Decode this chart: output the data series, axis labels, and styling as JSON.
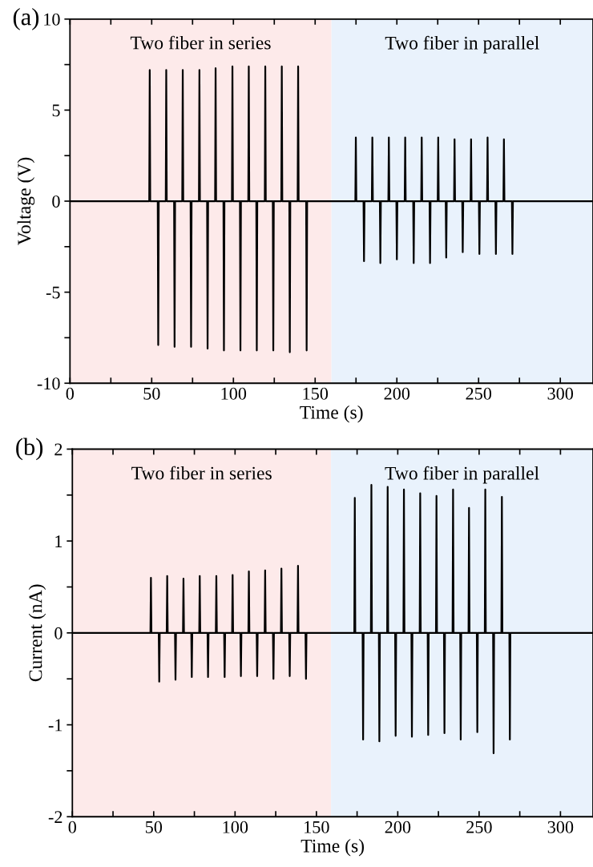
{
  "chart_data": [
    {
      "type": "line",
      "xlabel": "Time (s)",
      "ylabel": "Voltage (V)",
      "annotations": [
        "(a)"
      ],
      "xlim": [
        0,
        320
      ],
      "ylim": [
        -10,
        10
      ],
      "xticks": [
        0,
        {
          "value": 25,
          "label": null
        },
        50,
        {
          "value": 75,
          "label": null
        },
        100,
        {
          "value": 125,
          "label": null
        },
        150,
        {
          "value": 175,
          "label": null
        },
        200,
        {
          "value": 225,
          "label": null
        },
        250,
        {
          "value": 275,
          "label": null
        },
        300
      ],
      "yticks": [
        {
          "value": -10,
          "label": "-10"
        },
        {
          "value": -7.5,
          "label": null
        },
        {
          "value": -5,
          "label": "-5"
        },
        {
          "value": -2.5,
          "label": null
        },
        0,
        {
          "value": 2.5,
          "label": null
        },
        5,
        {
          "value": 7.5,
          "label": null
        },
        10
      ],
      "bands": [
        {
          "axis": "x",
          "from": 0,
          "to": 160,
          "label": "Two fiber in series",
          "color": "#fdeaea"
        },
        {
          "axis": "x",
          "from": 160,
          "to": 320,
          "label": "Two fiber in parallel",
          "color": "#e9f2fc"
        }
      ],
      "series": [
        {
          "color": "#000000",
          "x": [
            0,
            48.5,
            48.8,
            49.1,
            53.7,
            54.0,
            54.3,
            58.6,
            58.9,
            59.2,
            63.7,
            64.0,
            64.3,
            68.7,
            69.0,
            69.3,
            73.8,
            74.1,
            74.4,
            78.9,
            79.2,
            79.5,
            83.9,
            84.2,
            84.5,
            88.8,
            89.1,
            89.4,
            93.9,
            94.2,
            94.5,
            99.1,
            99.4,
            99.7,
            104.0,
            104.3,
            104.6,
            109.1,
            109.4,
            109.7,
            114.0,
            114.3,
            114.6,
            119.2,
            119.5,
            119.8,
            124.1,
            124.4,
            124.7,
            129.3,
            129.6,
            129.9,
            134.2,
            134.5,
            134.8,
            139.3,
            139.6,
            139.9,
            144.5,
            144.8,
            145.1,
            174.6,
            174.9,
            175.2,
            179.6,
            179.9,
            180.2,
            184.7,
            185.0,
            185.3,
            189.6,
            189.9,
            190.2,
            194.8,
            195.1,
            195.4,
            199.7,
            200.0,
            200.3,
            204.8,
            205.1,
            205.4,
            210.0,
            210.3,
            210.6,
            214.9,
            215.2,
            215.5,
            220.0,
            220.3,
            220.6,
            225.0,
            225.3,
            225.6,
            229.9,
            230.2,
            230.5,
            235.0,
            235.3,
            235.6,
            240.0,
            240.3,
            240.6,
            245.1,
            245.4,
            245.7,
            250.2,
            250.5,
            250.8,
            255.2,
            255.5,
            255.8,
            260.3,
            260.6,
            260.9,
            265.2,
            265.5,
            265.8,
            270.4,
            270.7,
            271.0,
            320
          ],
          "values": [
            0,
            0,
            7.2,
            0,
            0,
            -7.9,
            0,
            0,
            7.2,
            0,
            0,
            -8.0,
            0,
            0,
            7.2,
            0,
            0,
            -8.0,
            0,
            0,
            7.2,
            0,
            0,
            -8.1,
            0,
            0,
            7.3,
            0,
            0,
            -8.2,
            0,
            0,
            7.4,
            0,
            0,
            -8.2,
            0,
            0,
            7.4,
            0,
            0,
            -8.2,
            0,
            0,
            7.4,
            0,
            0,
            -8.2,
            0,
            0,
            7.4,
            0,
            0,
            -8.3,
            0,
            0,
            7.4,
            0,
            0,
            -8.2,
            0,
            0,
            3.5,
            0,
            0,
            -3.3,
            0,
            0,
            3.5,
            0,
            0,
            -3.4,
            0,
            0,
            3.5,
            0,
            0,
            -3.2,
            0,
            0,
            3.5,
            0,
            0,
            -3.4,
            0,
            0,
            3.5,
            0,
            0,
            -3.4,
            0,
            0,
            3.5,
            0,
            0,
            -3.1,
            0,
            0,
            3.4,
            0,
            0,
            -2.8,
            0,
            0,
            3.4,
            0,
            0,
            -2.9,
            0,
            0,
            3.5,
            0,
            0,
            -2.9,
            0,
            0,
            3.4,
            0,
            0,
            -2.9,
            0,
            0
          ]
        }
      ]
    },
    {
      "type": "line",
      "xlabel": "Time (s)",
      "ylabel": "Current (nA)",
      "annotations": [
        "(b)"
      ],
      "xlim": [
        0,
        320
      ],
      "ylim": [
        -2,
        2
      ],
      "xticks": [
        0,
        {
          "value": 25,
          "label": null
        },
        50,
        {
          "value": 75,
          "label": null
        },
        100,
        {
          "value": 125,
          "label": null
        },
        150,
        {
          "value": 175,
          "label": null
        },
        200,
        {
          "value": 225,
          "label": null
        },
        250,
        {
          "value": 275,
          "label": null
        },
        300
      ],
      "yticks": [
        {
          "value": -2,
          "label": "-2"
        },
        {
          "value": -1.5,
          "label": null
        },
        {
          "value": -1,
          "label": "-1"
        },
        {
          "value": -0.5,
          "label": null
        },
        0,
        {
          "value": 0.5,
          "label": null
        },
        1,
        {
          "value": 1.5,
          "label": null
        },
        2
      ],
      "bands": [
        {
          "axis": "x",
          "from": 0,
          "to": 159,
          "label": "Two fiber in series",
          "color": "#fdeaea"
        },
        {
          "axis": "x",
          "from": 159,
          "to": 320,
          "label": "Two fiber in parallel",
          "color": "#e9f2fc"
        }
      ],
      "series": [
        {
          "color": "#000000",
          "x": [
            0,
            48.0,
            48.3,
            48.6,
            53.1,
            53.4,
            53.7,
            58.0,
            58.3,
            58.6,
            63.1,
            63.4,
            63.7,
            68.0,
            68.3,
            68.6,
            73.1,
            73.4,
            73.7,
            78.0,
            78.3,
            78.6,
            83.1,
            83.4,
            83.7,
            88.2,
            88.5,
            88.8,
            93.3,
            93.6,
            93.9,
            98.2,
            98.5,
            98.8,
            103.3,
            103.6,
            103.9,
            108.2,
            108.5,
            108.8,
            113.3,
            113.6,
            113.9,
            118.2,
            118.5,
            118.8,
            123.3,
            123.6,
            123.9,
            128.2,
            128.5,
            128.8,
            133.3,
            133.6,
            133.9,
            138.4,
            138.7,
            139.0,
            143.3,
            143.6,
            143.9,
            173.3,
            173.6,
            173.9,
            178.4,
            178.7,
            179.0,
            183.5,
            183.8,
            184.1,
            188.4,
            188.7,
            189.0,
            193.5,
            193.8,
            194.1,
            198.4,
            198.7,
            199.0,
            203.5,
            203.8,
            204.1,
            208.4,
            208.7,
            209.0,
            213.5,
            213.8,
            214.1,
            218.4,
            218.7,
            219.0,
            223.5,
            223.8,
            224.1,
            228.4,
            228.7,
            229.0,
            233.7,
            234.0,
            234.3,
            238.4,
            238.7,
            239.0,
            243.5,
            243.8,
            244.1,
            248.6,
            248.9,
            249.2,
            253.5,
            253.8,
            254.1,
            258.6,
            258.9,
            259.2,
            263.7,
            264.0,
            264.3,
            268.6,
            268.9,
            269.2,
            320
          ],
          "values": [
            0,
            0,
            0.6,
            0,
            0,
            -0.53,
            0,
            0,
            0.62,
            0,
            0,
            -0.51,
            0,
            0,
            0.59,
            0,
            0,
            -0.48,
            0,
            0,
            0.62,
            0,
            0,
            -0.48,
            0,
            0,
            0.62,
            0,
            0,
            -0.48,
            0,
            0,
            0.63,
            0,
            0,
            -0.47,
            0,
            0,
            0.67,
            0,
            0,
            -0.47,
            0,
            0,
            0.68,
            0,
            0,
            -0.5,
            0,
            0,
            0.7,
            0,
            0,
            -0.47,
            0,
            0,
            0.73,
            0,
            0,
            -0.5,
            0,
            0,
            1.47,
            0,
            0,
            -1.16,
            0,
            0,
            1.61,
            0,
            0,
            -1.18,
            0,
            0,
            1.59,
            0,
            0,
            -1.12,
            0,
            0,
            1.56,
            0,
            0,
            -1.13,
            0,
            0,
            1.52,
            0,
            0,
            -1.11,
            0,
            0,
            1.49,
            0,
            0,
            -1.09,
            0,
            0,
            1.56,
            0,
            0,
            -1.16,
            0,
            0,
            1.36,
            0,
            0,
            -1.08,
            0,
            0,
            1.56,
            0,
            0,
            -1.31,
            0,
            0,
            1.48,
            0,
            0,
            -1.16,
            0,
            0
          ]
        }
      ]
    }
  ]
}
